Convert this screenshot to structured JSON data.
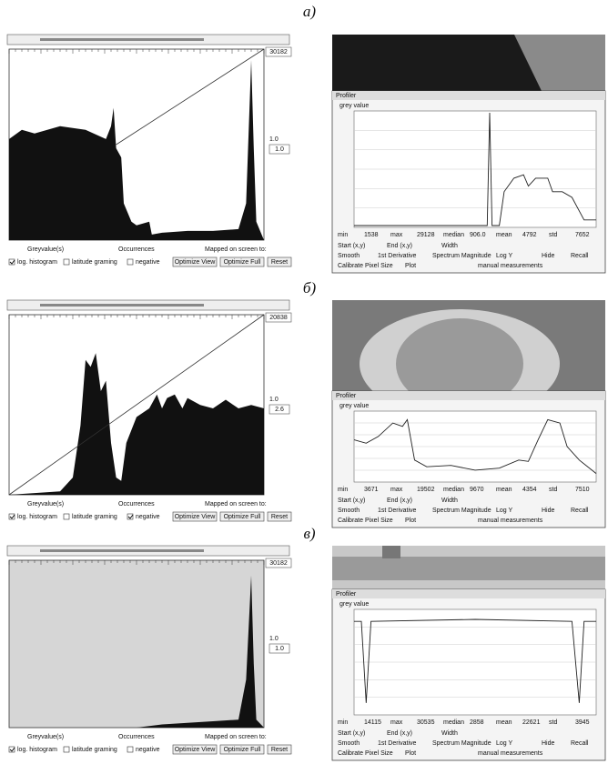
{
  "panels": [
    {
      "label": "а)",
      "histogram": {
        "max_value": "30182",
        "gain": "1.0",
        "gain_box": "1.0",
        "footer": [
          "Greyvalue(s)",
          "Occurrences",
          "Mapped on screen to:"
        ],
        "options": [
          "log. histogram",
          "latitude graming",
          "negative"
        ],
        "checked": [
          true,
          false,
          false
        ],
        "buttons": [
          "Optimize View",
          "Optimize Full",
          "Reset"
        ]
      },
      "profiler": {
        "title": "Profiler",
        "axis_label": "grey value",
        "stats": [
          "min",
          "1538",
          "max",
          "29128",
          "median",
          "906.0",
          "mean",
          "4792",
          "std",
          "7652"
        ],
        "controls": [
          "Start (x,y)",
          "End (x,y)",
          "Width",
          "Smooth",
          "1st Derivative",
          "Spectrum Magnitude",
          "Log Y",
          "Hide",
          "Recall",
          "Calibrate Pixel Size",
          "Plot",
          "manual measurements"
        ]
      }
    },
    {
      "label": "б)",
      "histogram": {
        "max_value": "20838",
        "gain": "1.0",
        "gain_box": "2.6",
        "footer": [
          "Greyvalue(s)",
          "Occurrences",
          "Mapped on screen to:"
        ],
        "options": [
          "log. histogram",
          "latitude graming",
          "negative"
        ],
        "checked": [
          true,
          false,
          true
        ],
        "buttons": [
          "Optimize View",
          "Optimize Full",
          "Reset"
        ]
      },
      "profiler": {
        "title": "Profiler",
        "axis_label": "grey value",
        "stats": [
          "min",
          "3671",
          "max",
          "19502",
          "median",
          "9670",
          "mean",
          "4354",
          "std",
          "7510"
        ],
        "controls": [
          "Start (x,y)",
          "End (x,y)",
          "Width",
          "Smooth",
          "1st Derivative",
          "Spectrum Magnitude",
          "Log Y",
          "Hide",
          "Recall",
          "Calibrate Pixel Size",
          "Plot",
          "manual measurements"
        ]
      }
    },
    {
      "label": "в)",
      "histogram": {
        "max_value": "30182",
        "gain": "1.0",
        "gain_box": "1.0",
        "footer": [
          "Greyvalue(s)",
          "Occurrences",
          "Mapped on screen to:"
        ],
        "options": [
          "log. histogram",
          "latitude graming",
          "negative"
        ],
        "checked": [
          true,
          false,
          false
        ],
        "buttons": [
          "Optimize View",
          "Optimize Full",
          "Reset"
        ]
      },
      "profiler": {
        "title": "Profiler",
        "axis_label": "grey value",
        "stats": [
          "min",
          "14115",
          "max",
          "30535",
          "median",
          "2858",
          "mean",
          "22621",
          "std",
          "3945"
        ],
        "controls": [
          "Start (x,y)",
          "End (x,y)",
          "Width",
          "Smooth",
          "1st Derivative",
          "Spectrum Magnitude",
          "Log Y",
          "Hide",
          "Recall",
          "Calibrate Pixel Size",
          "Plot",
          "manual measurements"
        ]
      }
    }
  ]
}
